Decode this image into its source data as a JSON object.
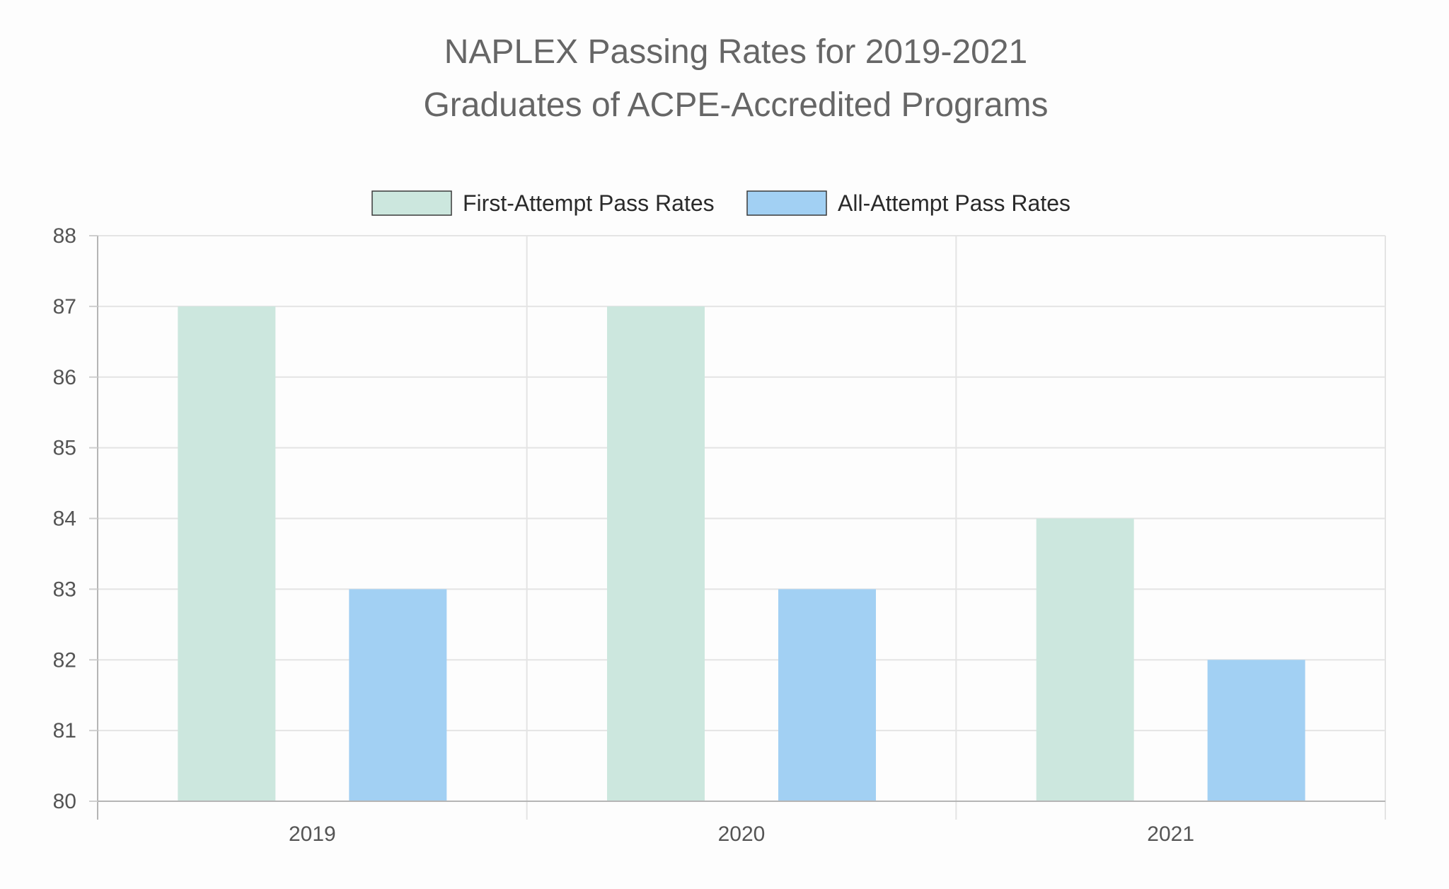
{
  "chart_data": {
    "type": "bar",
    "title": [
      "NAPLEX Passing Rates for 2019-2021",
      "Graduates of ACPE-Accredited Programs"
    ],
    "xlabel": "",
    "ylabel": "",
    "categories": [
      "2019",
      "2020",
      "2021"
    ],
    "series": [
      {
        "name": "First-Attempt Pass Rates",
        "values": [
          87,
          87,
          84
        ],
        "color": "#cce7de"
      },
      {
        "name": "All-Attempt Pass Rates",
        "values": [
          83,
          83,
          82
        ],
        "color": "#a2d0f3"
      }
    ],
    "ylim": [
      80,
      88
    ],
    "yticks": [
      "80",
      "81",
      "82",
      "83",
      "84",
      "85",
      "86",
      "87",
      "88"
    ],
    "grid": true,
    "legend_position": "top"
  }
}
